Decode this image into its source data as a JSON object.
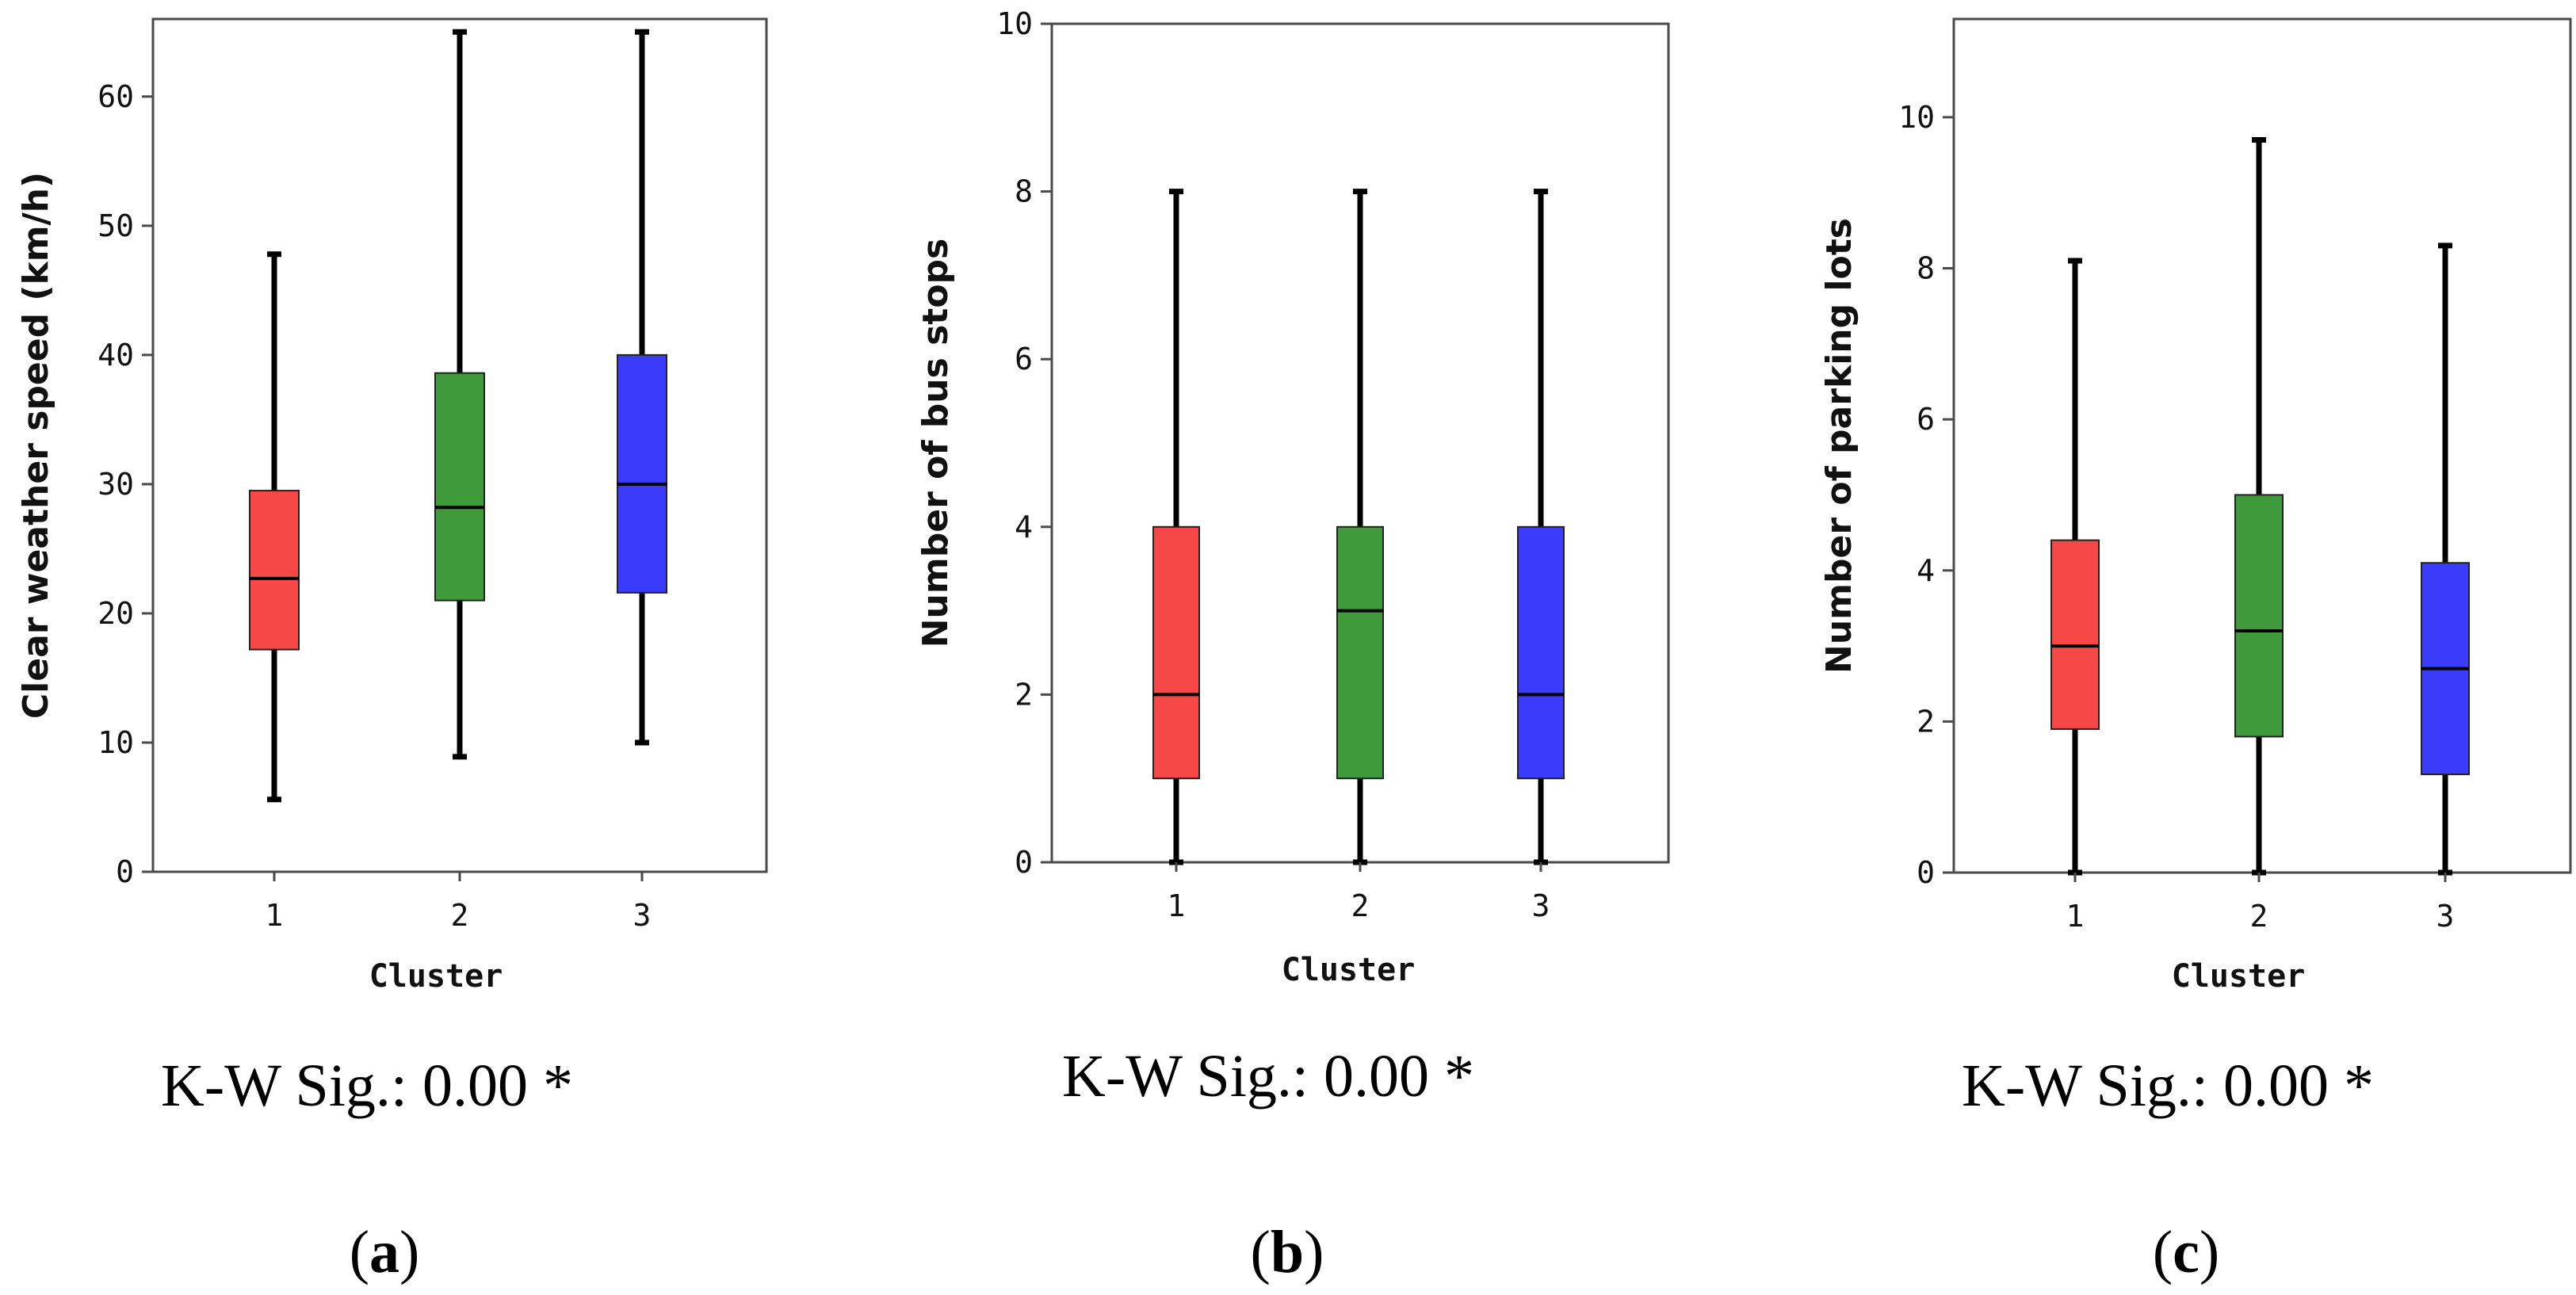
{
  "chart_data": [
    {
      "type": "box",
      "title": "",
      "xlabel": "Cluster",
      "ylabel": "Clear weather speed (km/h)",
      "categories": [
        "1",
        "2",
        "3"
      ],
      "ylim": [
        0,
        66
      ],
      "yticks": [
        0,
        10,
        20,
        30,
        40,
        50,
        60
      ],
      "colors": [
        "#f74848",
        "#3e9a3a",
        "#3b3bfb"
      ],
      "boxes": [
        {
          "name": "1",
          "min": 5.6,
          "q1": 17.2,
          "median": 22.7,
          "q3": 29.5,
          "max": 47.8
        },
        {
          "name": "2",
          "min": 8.9,
          "q1": 21.0,
          "median": 28.2,
          "q3": 38.6,
          "max": 65.0
        },
        {
          "name": "3",
          "min": 10.0,
          "q1": 21.6,
          "median": 30.0,
          "q3": 40.0,
          "max": 65.0
        }
      ],
      "stat_label": "K-W Sig.: 0.00 *",
      "panel_letter": "a"
    },
    {
      "type": "box",
      "title": "",
      "xlabel": "Cluster",
      "ylabel": "Number of bus stops",
      "categories": [
        "1",
        "2",
        "3"
      ],
      "ylim": [
        0,
        10
      ],
      "yticks": [
        0,
        2,
        4,
        6,
        8,
        10
      ],
      "colors": [
        "#f74848",
        "#3e9a3a",
        "#3b3bfb"
      ],
      "boxes": [
        {
          "name": "1",
          "min": 0,
          "q1": 1,
          "median": 2,
          "q3": 4,
          "max": 8
        },
        {
          "name": "2",
          "min": 0,
          "q1": 1,
          "median": 3,
          "q3": 4,
          "max": 8
        },
        {
          "name": "3",
          "min": 0,
          "q1": 1,
          "median": 2,
          "q3": 4,
          "max": 8
        }
      ],
      "stat_label": "K-W Sig.: 0.00 *",
      "panel_letter": "b"
    },
    {
      "type": "box",
      "title": "",
      "xlabel": "Cluster",
      "ylabel": "Number of parking lots",
      "categories": [
        "1",
        "2",
        "3"
      ],
      "ylim": [
        0,
        11.3
      ],
      "yticks": [
        0,
        2,
        4,
        6,
        8,
        10
      ],
      "colors": [
        "#f74848",
        "#3e9a3a",
        "#3b3bfb"
      ],
      "boxes": [
        {
          "name": "1",
          "min": 0,
          "q1": 1.9,
          "median": 3.0,
          "q3": 4.4,
          "max": 8.1
        },
        {
          "name": "2",
          "min": 0,
          "q1": 1.8,
          "median": 3.2,
          "q3": 5.0,
          "max": 9.7
        },
        {
          "name": "3",
          "min": 0,
          "q1": 1.3,
          "median": 2.7,
          "q3": 4.1,
          "max": 8.3
        }
      ],
      "stat_label": "K-W Sig.: 0.00 *",
      "panel_letter": "c"
    }
  ]
}
